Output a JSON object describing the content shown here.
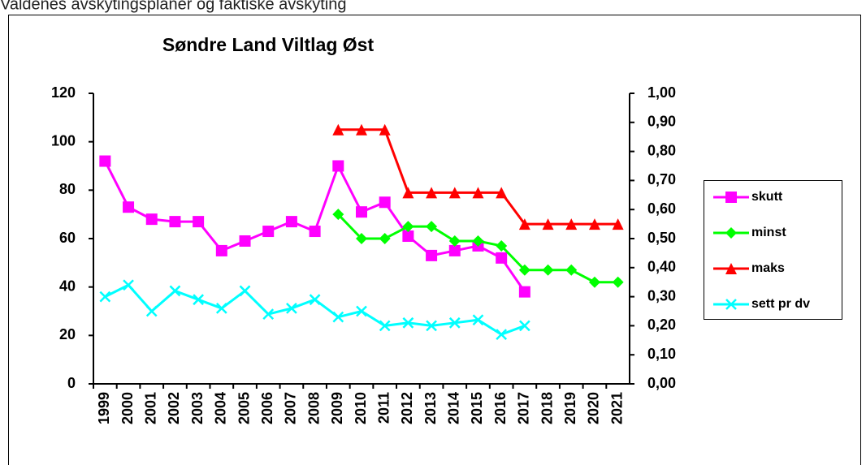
{
  "heading": "Valdenes avskytingsplaner og faktiske avskyting",
  "chart_data": {
    "type": "line",
    "title": "Søndre Land Viltlag Øst",
    "categories": [
      "1999",
      "2000",
      "2001",
      "2002",
      "2003",
      "2004",
      "2005",
      "2006",
      "2007",
      "2008",
      "2009",
      "2010",
      "2011",
      "2012",
      "2013",
      "2014",
      "2015",
      "2016",
      "2017",
      "2018",
      "2019",
      "2020",
      "2021"
    ],
    "ylim": [
      0,
      120
    ],
    "yticks": [
      0,
      20,
      40,
      60,
      80,
      100,
      120
    ],
    "y2lim": [
      0,
      1
    ],
    "y2ticks": [
      {
        "value": 0,
        "label": "0,00"
      },
      {
        "value": 0.1,
        "label": "0,10"
      },
      {
        "value": 0.2,
        "label": "0,20"
      },
      {
        "value": 0.3,
        "label": "0,30"
      },
      {
        "value": 0.4,
        "label": "0,40"
      },
      {
        "value": 0.5,
        "label": "0,50"
      },
      {
        "value": 0.6,
        "label": "0,60"
      },
      {
        "value": 0.7,
        "label": "0,70"
      },
      {
        "value": 0.8,
        "label": "0,80"
      },
      {
        "value": 0.9,
        "label": "0,90"
      },
      {
        "value": 1,
        "label": "1,00"
      }
    ],
    "grid": false,
    "legend": "right",
    "series": [
      {
        "name": "skutt",
        "color": "#ff00ff",
        "marker": "square",
        "values": [
          92,
          73,
          68,
          67,
          67,
          55,
          59,
          63,
          67,
          63,
          90,
          71,
          75,
          61,
          53,
          55,
          57,
          52,
          38,
          null,
          null,
          null,
          null
        ]
      },
      {
        "name": "minst",
        "color": "#00ff00",
        "marker": "diamond",
        "values": [
          null,
          null,
          null,
          null,
          null,
          null,
          null,
          null,
          null,
          null,
          70,
          60,
          60,
          65,
          65,
          59,
          59,
          57,
          47,
          47,
          47,
          42,
          42
        ]
      },
      {
        "name": "maks",
        "color": "#ff0000",
        "marker": "triangle",
        "values": [
          null,
          null,
          null,
          null,
          null,
          null,
          null,
          null,
          null,
          null,
          105,
          105,
          105,
          79,
          79,
          79,
          79,
          79,
          66,
          66,
          66,
          66,
          66
        ]
      },
      {
        "name": "sett pr dv",
        "color": "#00ffff",
        "marker": "x",
        "axis": "y2",
        "values": [
          0.3,
          0.34,
          0.25,
          0.32,
          0.29,
          0.26,
          0.32,
          0.24,
          0.26,
          0.29,
          0.23,
          0.25,
          0.2,
          0.21,
          0.2,
          0.21,
          0.22,
          0.17,
          0.2,
          null,
          null,
          null,
          null
        ]
      }
    ]
  }
}
